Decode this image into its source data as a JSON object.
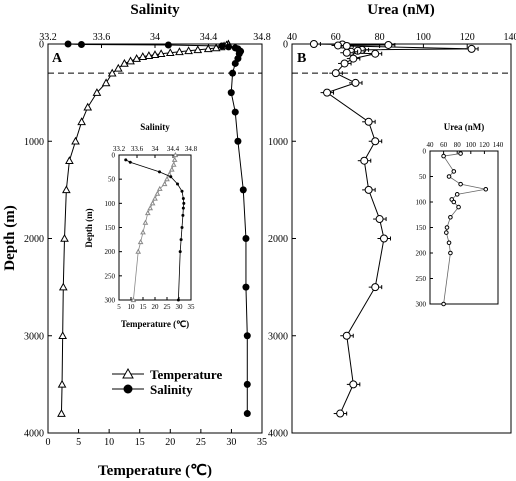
{
  "chart_data": [
    {
      "type": "line",
      "panel_label": "A",
      "title": "Salinity",
      "xlabel": "Temperature (℃)",
      "ylabel": "Depth (m)",
      "x_bottom": {
        "label": "Temperature (℃)",
        "range": [
          0,
          35
        ],
        "ticks": [
          0,
          5,
          10,
          15,
          20,
          25,
          30,
          35
        ]
      },
      "x_top": {
        "label": "Salinity",
        "range": [
          33.2,
          34.8
        ],
        "ticks": [
          33.2,
          33.6,
          34.0,
          34.4,
          34.8
        ]
      },
      "y": {
        "label": "Depth (m)",
        "range": [
          0,
          4000
        ],
        "inverted": true,
        "ticks": [
          0,
          1000,
          2000,
          3000,
          4000
        ]
      },
      "reference_line_depth": 300,
      "legend": {
        "placement": "bottom-right",
        "entries": [
          "Temperature",
          "Salinity"
        ]
      },
      "series": [
        {
          "name": "Temperature",
          "axis": "x_bottom",
          "marker": "open-triangle",
          "points": [
            [
              29.5,
              0
            ],
            [
              29.5,
              5
            ],
            [
              29.2,
              10
            ],
            [
              28.8,
              20
            ],
            [
              28.3,
              30
            ],
            [
              27.5,
              40
            ],
            [
              26.2,
              50
            ],
            [
              24.5,
              60
            ],
            [
              23.0,
              70
            ],
            [
              21.5,
              80
            ],
            [
              20.0,
              90
            ],
            [
              18.5,
              100
            ],
            [
              17.5,
              110
            ],
            [
              16.5,
              120
            ],
            [
              15.5,
              130
            ],
            [
              14.5,
              150
            ],
            [
              13.5,
              175
            ],
            [
              12.5,
              200
            ],
            [
              11.5,
              250
            ],
            [
              10.5,
              300
            ],
            [
              9.5,
              400
            ],
            [
              8.0,
              500
            ],
            [
              6.5,
              650
            ],
            [
              5.5,
              800
            ],
            [
              4.5,
              1000
            ],
            [
              3.5,
              1200
            ],
            [
              3.0,
              1500
            ],
            [
              2.7,
              2000
            ],
            [
              2.5,
              2500
            ],
            [
              2.4,
              3000
            ],
            [
              2.3,
              3500
            ],
            [
              2.2,
              3800
            ]
          ]
        },
        {
          "name": "Salinity",
          "axis": "x_top",
          "marker": "filled-circle",
          "points": [
            [
              33.35,
              0
            ],
            [
              33.45,
              5
            ],
            [
              34.1,
              10
            ],
            [
              34.5,
              20
            ],
            [
              34.55,
              30
            ],
            [
              34.6,
              40
            ],
            [
              34.62,
              50
            ],
            [
              34.64,
              75
            ],
            [
              34.63,
              100
            ],
            [
              34.62,
              150
            ],
            [
              34.6,
              200
            ],
            [
              34.58,
              300
            ],
            [
              34.57,
              500
            ],
            [
              34.6,
              700
            ],
            [
              34.62,
              1000
            ],
            [
              34.66,
              1500
            ],
            [
              34.68,
              2000
            ],
            [
              34.68,
              2500
            ],
            [
              34.69,
              3000
            ],
            [
              34.69,
              3500
            ],
            [
              34.69,
              3800
            ]
          ]
        }
      ],
      "inset": {
        "title": "Salinity",
        "xlabel": "Temperature (℃)",
        "ylabel": "Depth (m)",
        "x_bottom": {
          "range": [
            5,
            35
          ],
          "ticks": [
            5,
            10,
            15,
            20,
            25,
            30,
            35
          ]
        },
        "x_top": {
          "range": [
            33.2,
            34.8
          ],
          "ticks": [
            33.2,
            33.6,
            34.0,
            34.4,
            34.8
          ]
        },
        "y": {
          "range": [
            0,
            300
          ],
          "inverted": true,
          "ticks": [
            0,
            50,
            100,
            150,
            200,
            250,
            300
          ]
        },
        "series": [
          {
            "name": "Temperature",
            "axis": "x_bottom",
            "marker": "open-triangle",
            "points": [
              [
                28.5,
                0
              ],
              [
                28.2,
                10
              ],
              [
                27.8,
                20
              ],
              [
                27.0,
                30
              ],
              [
                26.0,
                40
              ],
              [
                25.0,
                50
              ],
              [
                24.0,
                60
              ],
              [
                22.0,
                70
              ],
              [
                21.0,
                80
              ],
              [
                20.0,
                90
              ],
              [
                19.0,
                100
              ],
              [
                18.0,
                110
              ],
              [
                17.0,
                120
              ],
              [
                16.0,
                140
              ],
              [
                15.0,
                160
              ],
              [
                14.0,
                180
              ],
              [
                13.0,
                200
              ],
              [
                11.0,
                300
              ]
            ]
          },
          {
            "name": "Salinity",
            "axis": "x_top",
            "marker": "filled-circle",
            "points": [
              [
                33.35,
                10
              ],
              [
                33.45,
                15
              ],
              [
                34.1,
                35
              ],
              [
                34.35,
                45
              ],
              [
                34.5,
                60
              ],
              [
                34.6,
                75
              ],
              [
                34.63,
                90
              ],
              [
                34.64,
                100
              ],
              [
                34.63,
                110
              ],
              [
                34.62,
                125
              ],
              [
                34.6,
                150
              ],
              [
                34.58,
                175
              ],
              [
                34.56,
                200
              ],
              [
                34.52,
                300
              ]
            ]
          }
        ]
      }
    },
    {
      "type": "line",
      "panel_label": "B",
      "title": "Urea (nM)",
      "x_top": {
        "label": "Urea (nM)",
        "range": [
          40,
          140
        ],
        "ticks": [
          40,
          60,
          80,
          100,
          120,
          140
        ]
      },
      "y": {
        "range": [
          0,
          4000
        ],
        "inverted": true,
        "ticks": [
          0,
          1000,
          2000,
          3000,
          4000
        ]
      },
      "reference_line_depth": 300,
      "series": [
        {
          "name": "Urea",
          "marker": "open-circle",
          "error_bars": true,
          "points": [
            [
              50,
              0
            ],
            [
              63,
              5
            ],
            [
              84,
              10
            ],
            [
              61,
              15
            ],
            [
              65,
              20
            ],
            [
              122,
              50
            ],
            [
              72,
              60
            ],
            [
              70,
              70
            ],
            [
              67,
              80
            ],
            [
              65,
              90
            ],
            [
              78,
              100
            ],
            [
              68,
              150
            ],
            [
              64,
              200
            ],
            [
              60,
              300
            ],
            [
              69,
              400
            ],
            [
              56,
              500
            ],
            [
              75,
              800
            ],
            [
              78,
              1000
            ],
            [
              73,
              1200
            ],
            [
              75,
              1500
            ],
            [
              80,
              1800
            ],
            [
              82,
              2000
            ],
            [
              78,
              2500
            ],
            [
              65,
              3000
            ],
            [
              68,
              3500
            ],
            [
              62,
              3800
            ]
          ]
        }
      ],
      "inset": {
        "title": "Urea (nM)",
        "x_top": {
          "range": [
            40,
            140
          ],
          "ticks": [
            40,
            60,
            80,
            100,
            120,
            140
          ]
        },
        "y": {
          "range": [
            0,
            300
          ],
          "inverted": true,
          "ticks": [
            0,
            50,
            100,
            150,
            200,
            250,
            300
          ]
        },
        "series": [
          {
            "name": "Urea",
            "marker": "open-circle",
            "points": [
              [
                85,
                5
              ],
              [
                60,
                10
              ],
              [
                75,
                40
              ],
              [
                68,
                50
              ],
              [
                85,
                65
              ],
              [
                122,
                75
              ],
              [
                80,
                85
              ],
              [
                72,
                95
              ],
              [
                75,
                100
              ],
              [
                82,
                110
              ],
              [
                70,
                130
              ],
              [
                65,
                150
              ],
              [
                64,
                160
              ],
              [
                68,
                180
              ],
              [
                70,
                200
              ],
              [
                60,
                300
              ]
            ]
          }
        ]
      }
    }
  ]
}
